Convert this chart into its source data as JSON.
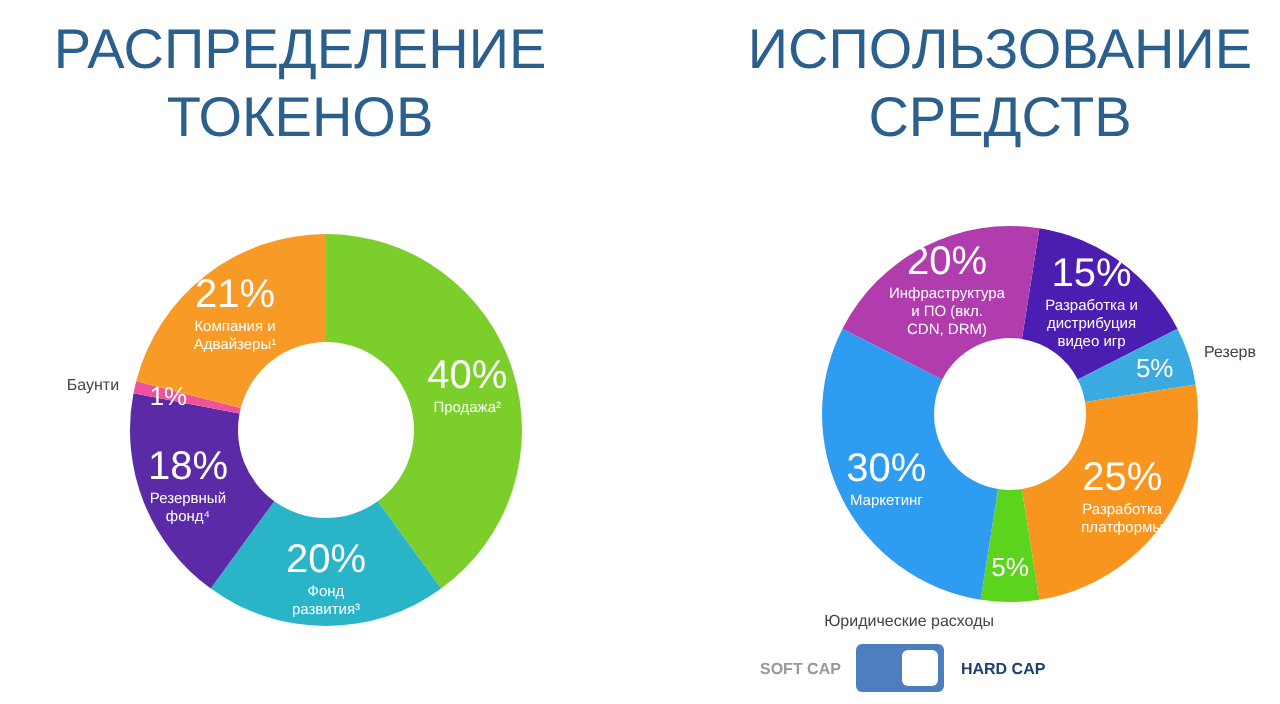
{
  "chart_data": [
    {
      "type": "donut",
      "title": "РАСПРЕДЕЛЕНИЕ ТОКЕНОВ",
      "categories": [
        "Продажа²",
        "Фонд развития³",
        "Резервный фонд⁴",
        "Баунти",
        "Компания и Адвайзеры¹"
      ],
      "values": [
        40,
        20,
        18,
        1,
        21
      ],
      "value_labels": [
        "40%",
        "20%",
        "18%",
        "1%",
        "21%"
      ],
      "colors": [
        "#7ccf2a",
        "#2ab4c8",
        "#5b2aa6",
        "#f0529a",
        "#f89a26"
      ],
      "legend": false
    },
    {
      "type": "donut",
      "title": "ИСПОЛЬЗОВАНИЕ СРЕДСТВ",
      "categories": [
        "Разработка и дистрибуция видео игр",
        "Резерв",
        "Разработка платформы",
        "Юридические расходы",
        "Маркетинг",
        "Инфраструктура и ПО (вкл. CDN, DRM)"
      ],
      "values": [
        15,
        5,
        25,
        5,
        30,
        20
      ],
      "value_labels": [
        "15%",
        "5%",
        "25%",
        "5%",
        "30%",
        "20%"
      ],
      "colors": [
        "#4b1db0",
        "#3aaae0",
        "#f7951f",
        "#5cd41e",
        "#2e9cf0",
        "#b03cae"
      ],
      "legend": false,
      "annotations": [
        "SOFT CAP",
        "HARD CAP"
      ]
    }
  ]
}
